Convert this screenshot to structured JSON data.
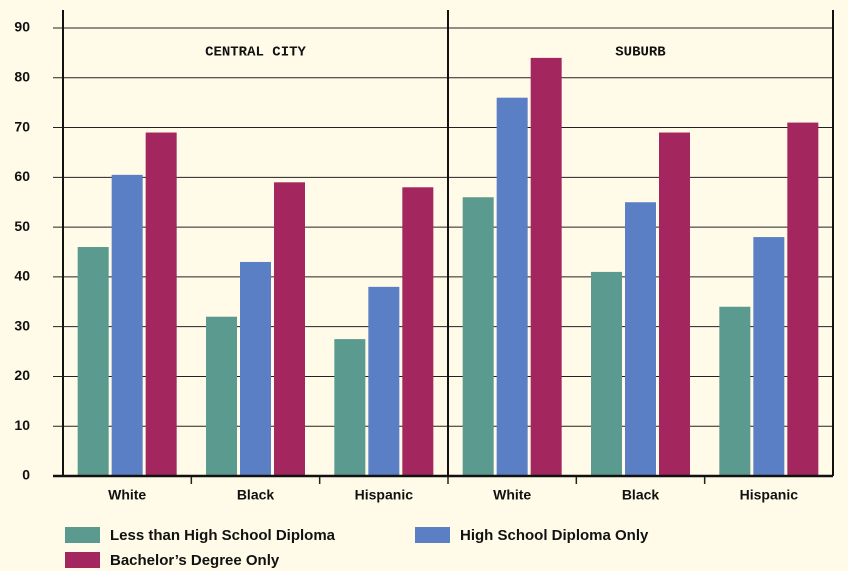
{
  "chart_data": {
    "type": "bar",
    "panels": [
      "CENTRAL CITY",
      "SUBURB"
    ],
    "categories": [
      "White",
      "Black",
      "Hispanic",
      "White",
      "Black",
      "Hispanic"
    ],
    "series": [
      {
        "name": "Less than High School Diploma",
        "color": "#5b9a8f",
        "values": [
          46,
          32,
          27.5,
          56,
          41,
          34
        ]
      },
      {
        "name": "High School Diploma Only",
        "color": "#5b7fc4",
        "values": [
          60.5,
          43,
          38,
          76,
          55,
          48
        ]
      },
      {
        "name": "Bachelor’s Degree Only",
        "color": "#a3265e",
        "values": [
          69,
          59,
          58,
          84,
          69,
          71
        ]
      }
    ],
    "ylim": [
      0,
      90
    ],
    "yticks": [
      0,
      10,
      20,
      30,
      40,
      50,
      60,
      70,
      80,
      90
    ],
    "grid": true
  }
}
